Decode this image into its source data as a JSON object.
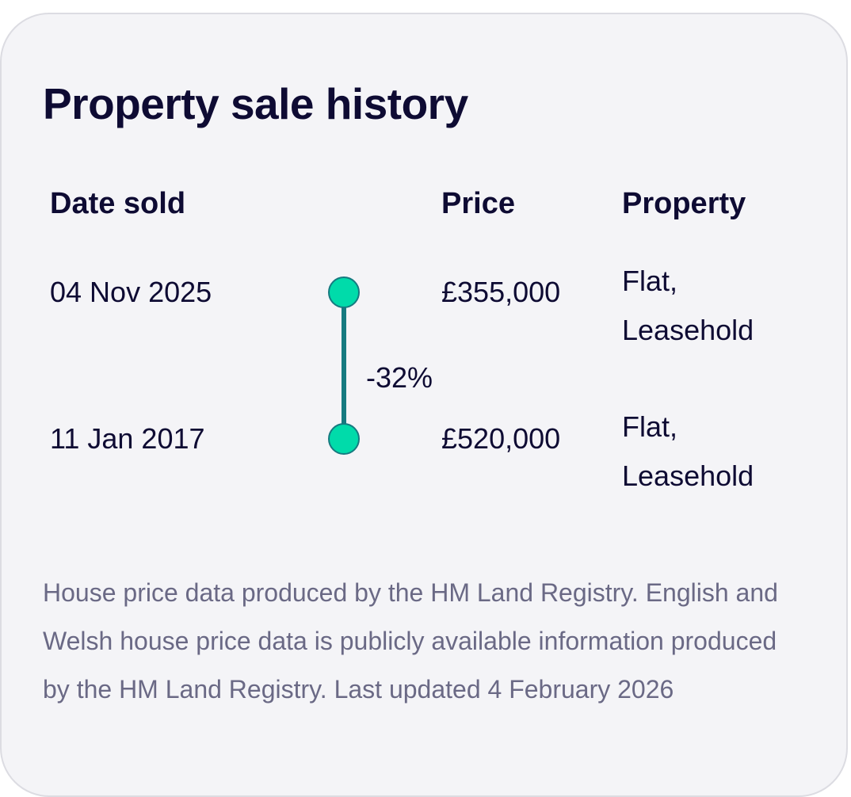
{
  "card": {
    "title": "Property sale history"
  },
  "table": {
    "headers": {
      "date": "Date sold",
      "price": "Price",
      "property": "Property"
    },
    "rows": [
      {
        "date": "04 Nov 2025",
        "price": "£355,000",
        "property": "Flat, Leasehold"
      },
      {
        "date": "11 Jan 2017",
        "price": "£520,000",
        "property": "Flat, Leasehold"
      }
    ],
    "change": "-32%"
  },
  "footnote": "House price data produced by the HM Land Registry. English and Welsh house price data is publicly available information produced by the HM Land Registry. Last updated 4 February 2026",
  "colors": {
    "text": "#0e0b33",
    "muted_text": "#6a6985",
    "card_background": "#f4f4f7",
    "timeline_dot": "#00dbaa",
    "timeline_line": "#167a80"
  }
}
